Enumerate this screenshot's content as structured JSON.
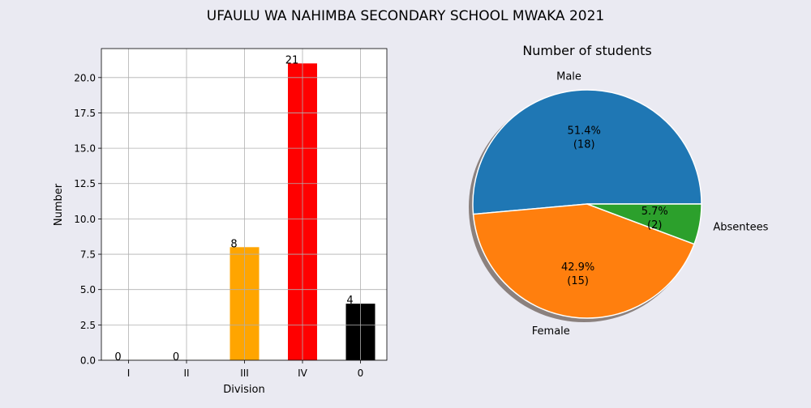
{
  "figure": {
    "title": "UFAULU WA NAHIMBA SECONDARY SCHOOL MWAKA 2021"
  },
  "chart_data": [
    {
      "type": "bar",
      "title": "",
      "xlabel": "Division",
      "ylabel": "Number",
      "categories": [
        "I",
        "II",
        "III",
        "IV",
        "0"
      ],
      "values": [
        0,
        0,
        8,
        21,
        4
      ],
      "colors": [
        "#1f77b4",
        "#1f77b4",
        "#ffa500",
        "#ff0000",
        "#000000"
      ],
      "ylim": [
        0,
        22.05
      ],
      "yticks": [
        0.0,
        2.5,
        5.0,
        7.5,
        10.0,
        12.5,
        15.0,
        17.5,
        20.0
      ],
      "ytick_labels": [
        "0.0",
        "2.5",
        "5.0",
        "7.5",
        "10.0",
        "12.5",
        "15.0",
        "17.5",
        "20.0"
      ],
      "grid": true,
      "data_labels": [
        "0",
        "0",
        "8",
        "21",
        "4"
      ]
    },
    {
      "type": "pie",
      "title": "Number of students",
      "labels": [
        "Male",
        "Female",
        "Absentees"
      ],
      "values": [
        18,
        15,
        2
      ],
      "percent_labels": [
        "51.4%",
        "42.9%",
        "5.7%"
      ],
      "count_labels": [
        "(18)",
        "(15)",
        "(2)"
      ],
      "colors": [
        "#1f77b4",
        "#ff7f0e",
        "#2ca02c"
      ],
      "shadow": true
    }
  ]
}
